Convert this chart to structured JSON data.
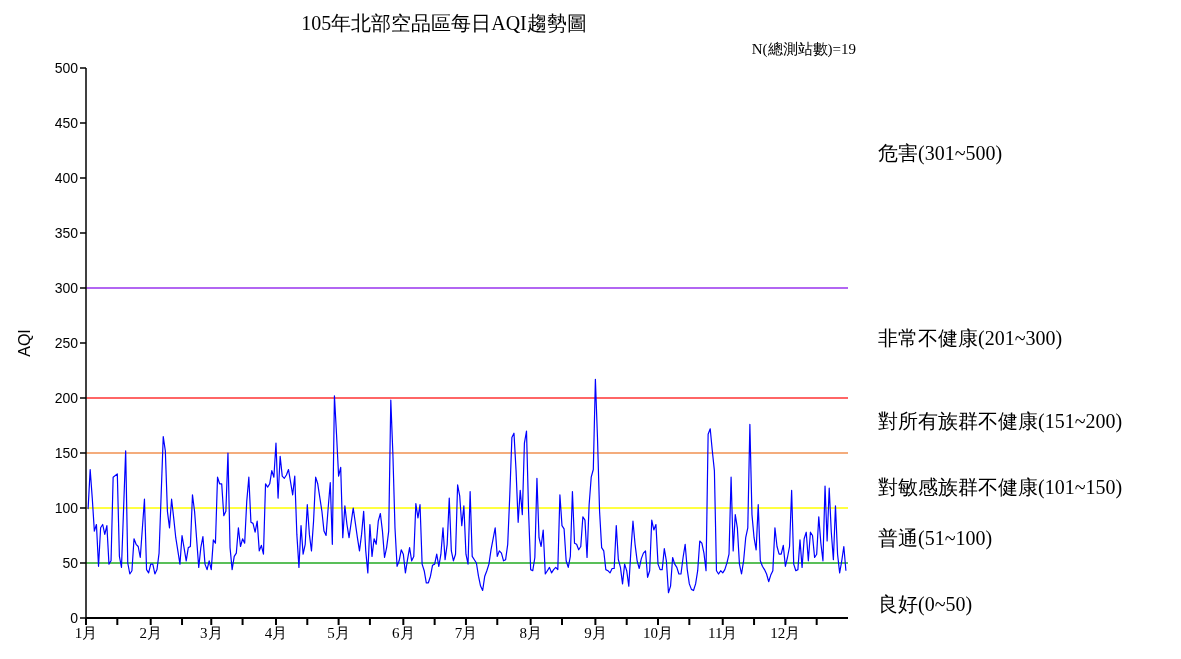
{
  "chart_data": {
    "type": "line",
    "title": "105年北部空品區每日AQI趨勢圖",
    "ylabel": "AQI",
    "annotations": [
      "N(總測站數)=19",
      "危害(301~500)",
      "非常不健康(201~300)",
      "對所有族群不健康(151~200)",
      "對敏感族群不健康(101~150)",
      "普通(51~100)",
      "良好(0~50)"
    ],
    "xlim": [
      "--01-01",
      "--12-31"
    ],
    "xticks": [
      {
        "value": "--01-01",
        "label": "1月"
      },
      {
        "value": "--01-16",
        "label": null
      },
      {
        "value": "--02-01",
        "label": "2月"
      },
      {
        "value": "--02-16",
        "label": null
      },
      {
        "value": "--03-01",
        "label": "3月"
      },
      {
        "value": "--03-16",
        "label": null
      },
      {
        "value": "--04-01",
        "label": "4月"
      },
      {
        "value": "--04-16",
        "label": null
      },
      {
        "value": "--05-01",
        "label": "5月"
      },
      {
        "value": "--05-16",
        "label": null
      },
      {
        "value": "--06-01",
        "label": "6月"
      },
      {
        "value": "--06-16",
        "label": null
      },
      {
        "value": "--07-01",
        "label": "7月"
      },
      {
        "value": "--07-16",
        "label": null
      },
      {
        "value": "--08-01",
        "label": "8月"
      },
      {
        "value": "--08-16",
        "label": null
      },
      {
        "value": "--09-01",
        "label": "9月"
      },
      {
        "value": "--09-16",
        "label": null
      },
      {
        "value": "--10-01",
        "label": "10月"
      },
      {
        "value": "--10-16",
        "label": null
      },
      {
        "value": "--11-01",
        "label": "11月"
      },
      {
        "value": "--11-16",
        "label": null
      },
      {
        "value": "--12-01",
        "label": "12月"
      },
      {
        "value": "--12-16",
        "label": null
      }
    ],
    "ylim": [
      0,
      500
    ],
    "yticks": [
      0,
      50,
      100,
      150,
      200,
      250,
      300,
      350,
      400,
      450,
      500
    ],
    "ref_lines": [
      {
        "axis": "y",
        "value": 50,
        "color": "#22aa22"
      },
      {
        "axis": "y",
        "value": 100,
        "color": "#ffff00"
      },
      {
        "axis": "y",
        "value": 150,
        "color": "#f09050"
      },
      {
        "axis": "y",
        "value": 200,
        "color": "#ff3333"
      },
      {
        "axis": "y",
        "value": 300,
        "color": "#9933ee"
      }
    ],
    "series": [
      {
        "color": "#0000ff",
        "x": [
          "--01-02",
          "--01-03",
          "--01-04",
          "--01-05",
          "--01-06",
          "--01-07",
          "--01-08",
          "--01-09",
          "--01-10",
          "--01-11",
          "--01-12",
          "--01-13",
          "--01-14",
          "--01-16",
          "--01-17",
          "--01-18",
          "--01-20",
          "--01-21",
          "--01-22",
          "--01-23",
          "--01-24",
          "--01-25",
          "--01-26",
          "--01-27",
          "--01-29",
          "--01-30",
          "--01-31",
          "--02-01",
          "--02-02",
          "--02-03",
          "--02-04",
          "--02-05",
          "--02-07",
          "--02-08",
          "--02-09",
          "--02-10",
          "--02-11",
          "--02-12",
          "--02-13",
          "--02-15",
          "--02-16",
          "--02-18",
          "--02-19",
          "--02-20",
          "--02-21",
          "--02-22",
          "--02-24",
          "--02-25",
          "--02-26",
          "--02-27",
          "--02-28",
          "--02-29",
          "--03-01",
          "--03-02",
          "--03-03",
          "--03-04",
          "--03-05",
          "--03-06",
          "--03-07",
          "--03-08",
          "--03-09",
          "--03-10",
          "--03-11",
          "--03-12",
          "--03-13",
          "--03-14",
          "--03-15",
          "--03-16",
          "--03-17",
          "--03-18",
          "--03-19",
          "--03-20",
          "--03-21",
          "--03-22",
          "--03-23",
          "--03-24",
          "--03-25",
          "--03-26",
          "--03-27",
          "--03-28",
          "--03-29",
          "--03-30",
          "--03-31",
          "--04-01",
          "--04-02",
          "--04-03",
          "--04-04",
          "--04-05",
          "--04-06",
          "--04-07",
          "--04-09",
          "--04-10",
          "--04-11",
          "--04-12",
          "--04-13",
          "--04-14",
          "--04-15",
          "--04-16",
          "--04-17",
          "--04-18",
          "--04-19",
          "--04-20",
          "--04-21",
          "--04-23",
          "--04-24",
          "--04-25",
          "--04-26",
          "--04-27",
          "--04-28",
          "--04-29",
          "--04-30",
          "--05-01",
          "--05-02",
          "--05-03",
          "--05-04",
          "--05-05",
          "--05-06",
          "--05-08",
          "--05-10",
          "--05-11",
          "--05-12",
          "--05-13",
          "--05-14",
          "--05-15",
          "--05-16",
          "--05-17",
          "--05-18",
          "--05-19",
          "--05-20",
          "--05-21",
          "--05-22",
          "--05-23",
          "--05-24",
          "--05-25",
          "--05-26",
          "--05-27",
          "--05-28",
          "--05-29",
          "--05-30",
          "--05-31",
          "--06-01",
          "--06-02",
          "--06-03",
          "--06-04",
          "--06-05",
          "--06-06",
          "--06-07",
          "--06-08",
          "--06-09",
          "--06-10",
          "--06-11",
          "--06-12",
          "--06-13",
          "--06-14",
          "--06-15",
          "--06-16",
          "--06-17",
          "--06-18",
          "--06-19",
          "--06-20",
          "--06-21",
          "--06-22",
          "--06-23",
          "--06-24",
          "--06-25",
          "--06-26",
          "--06-27",
          "--06-28",
          "--06-29",
          "--06-30",
          "--07-01",
          "--07-02",
          "--07-03",
          "--07-04",
          "--07-06",
          "--07-07",
          "--07-08",
          "--07-09",
          "--07-10",
          "--07-11",
          "--07-12",
          "--07-13",
          "--07-14",
          "--07-15",
          "--07-16",
          "--07-17",
          "--07-18",
          "--07-19",
          "--07-20",
          "--07-21",
          "--07-22",
          "--07-23",
          "--07-24",
          "--07-25",
          "--07-26",
          "--07-27",
          "--07-28",
          "--07-29",
          "--07-30",
          "--07-31",
          "--08-01",
          "--08-02",
          "--08-03",
          "--08-04",
          "--08-05",
          "--08-06",
          "--08-07",
          "--08-08",
          "--08-09",
          "--08-10",
          "--08-11",
          "--08-12",
          "--08-13",
          "--08-14",
          "--08-15",
          "--08-16",
          "--08-17",
          "--08-18",
          "--08-19",
          "--08-20",
          "--08-21",
          "--08-22",
          "--08-23",
          "--08-24",
          "--08-25",
          "--08-26",
          "--08-27",
          "--08-28",
          "--08-29",
          "--08-30",
          "--08-31",
          "--09-01",
          "--09-02",
          "--09-03",
          "--09-04",
          "--09-05",
          "--09-06",
          "--09-07",
          "--09-08",
          "--09-09",
          "--09-10",
          "--09-11",
          "--09-12",
          "--09-13",
          "--09-14",
          "--09-15",
          "--09-16",
          "--09-17",
          "--09-18",
          "--09-19",
          "--09-20",
          "--09-21",
          "--09-22",
          "--09-23",
          "--09-24",
          "--09-25",
          "--09-26",
          "--09-27",
          "--09-28",
          "--09-29",
          "--09-30",
          "--10-01",
          "--10-02",
          "--10-03",
          "--10-04",
          "--10-05",
          "--10-06",
          "--10-07",
          "--10-08",
          "--10-09",
          "--10-10",
          "--10-11",
          "--10-12",
          "--10-13",
          "--10-14",
          "--10-15",
          "--10-16",
          "--10-17",
          "--10-18",
          "--10-19",
          "--10-20",
          "--10-21",
          "--10-22",
          "--10-23",
          "--10-24",
          "--10-25",
          "--10-26",
          "--10-27",
          "--10-28",
          "--10-29",
          "--10-30",
          "--10-31",
          "--11-01",
          "--11-02",
          "--11-03",
          "--11-04",
          "--11-05",
          "--11-06",
          "--11-07",
          "--11-08",
          "--11-09",
          "--11-10",
          "--11-11",
          "--11-12",
          "--11-13",
          "--11-14",
          "--11-15",
          "--11-16",
          "--11-17",
          "--11-18",
          "--11-19",
          "--11-20",
          "--11-21",
          "--11-22",
          "--11-23",
          "--11-24",
          "--11-25",
          "--11-26",
          "--11-27",
          "--11-28",
          "--11-29",
          "--11-30",
          "--12-01",
          "--12-02",
          "--12-03",
          "--12-04",
          "--12-05",
          "--12-06",
          "--12-07",
          "--12-08",
          "--12-09",
          "--12-10",
          "--12-11",
          "--12-12",
          "--12-13",
          "--12-14",
          "--12-15",
          "--12-16",
          "--12-17",
          "--12-18",
          "--12-19",
          "--12-20",
          "--12-21",
          "--12-22",
          "--12-23",
          "--12-24",
          "--12-25",
          "--12-26",
          "--12-27",
          "--12-28",
          "--12-29",
          "--12-30"
        ],
        "values": [
          99,
          135,
          109,
          79,
          85,
          47,
          82,
          85,
          76,
          84,
          49,
          52,
          128,
          131,
          56,
          46,
          152,
          50,
          40,
          43,
          72,
          67,
          65,
          55,
          108,
          44,
          41,
          49,
          49,
          40,
          44,
          59,
          165,
          152,
          97,
          82,
          108,
          91,
          73,
          49,
          75,
          52,
          64,
          65,
          112,
          97,
          46,
          64,
          74,
          49,
          44,
          52,
          44,
          71,
          68,
          128,
          122,
          122,
          93,
          97,
          150,
          64,
          44,
          56,
          59,
          82,
          65,
          72,
          68,
          106,
          128,
          87,
          86,
          78,
          88,
          61,
          66,
          58,
          122,
          119,
          122,
          134,
          128,
          159,
          109,
          147,
          129,
          127,
          130,
          135,
          112,
          129,
          76,
          46,
          84,
          58,
          67,
          103,
          76,
          61,
          88,
          128,
          122,
          97,
          79,
          75,
          100,
          123,
          67,
          202,
          167,
          129,
          137,
          73,
          102,
          85,
          73,
          100,
          73,
          61,
          76,
          97,
          61,
          41,
          85,
          56,
          72,
          67,
          88,
          95,
          79,
          55,
          64,
          79,
          198,
          149,
          82,
          47,
          52,
          62,
          58,
          41,
          53,
          64,
          52,
          56,
          104,
          91,
          103,
          49,
          43,
          32,
          32,
          38,
          48,
          49,
          58,
          47,
          58,
          82,
          53,
          67,
          109,
          61,
          52,
          58,
          121,
          111,
          84,
          102,
          58,
          49,
          115,
          56,
          50,
          38,
          29,
          25,
          38,
          43,
          49,
          62,
          72,
          82,
          56,
          61,
          59,
          52,
          53,
          67,
          112,
          164,
          168,
          134,
          87,
          116,
          94,
          159,
          170,
          97,
          44,
          43,
          55,
          127,
          73,
          65,
          80,
          40,
          43,
          46,
          41,
          44,
          46,
          44,
          112,
          84,
          81,
          52,
          46,
          56,
          115,
          68,
          67,
          62,
          65,
          92,
          89,
          55,
          103,
          128,
          135,
          217,
          164,
          97,
          64,
          61,
          44,
          43,
          41,
          45,
          45,
          84,
          53,
          46,
          31,
          49,
          43,
          29,
          61,
          88,
          67,
          52,
          45,
          54,
          59,
          61,
          37,
          43,
          89,
          80,
          85,
          49,
          44,
          44,
          63,
          52,
          23,
          29,
          55,
          49,
          46,
          40,
          40,
          55,
          67,
          44,
          31,
          26,
          25,
          31,
          43,
          70,
          68,
          59,
          43,
          167,
          172,
          152,
          134,
          43,
          40,
          43,
          41,
          44,
          50,
          58,
          128,
          61,
          94,
          82,
          49,
          40,
          52,
          73,
          82,
          176,
          94,
          73,
          62,
          103,
          52,
          47,
          44,
          40,
          33,
          39,
          43,
          82,
          65,
          58,
          58,
          66,
          47,
          55,
          65,
          116,
          49,
          43,
          44,
          71,
          46,
          72,
          78,
          52,
          78,
          75,
          55,
          58,
          92,
          68,
          52,
          120,
          70,
          118,
          78,
          53,
          102,
          58,
          41,
          52,
          65,
          43
        ]
      }
    ]
  }
}
